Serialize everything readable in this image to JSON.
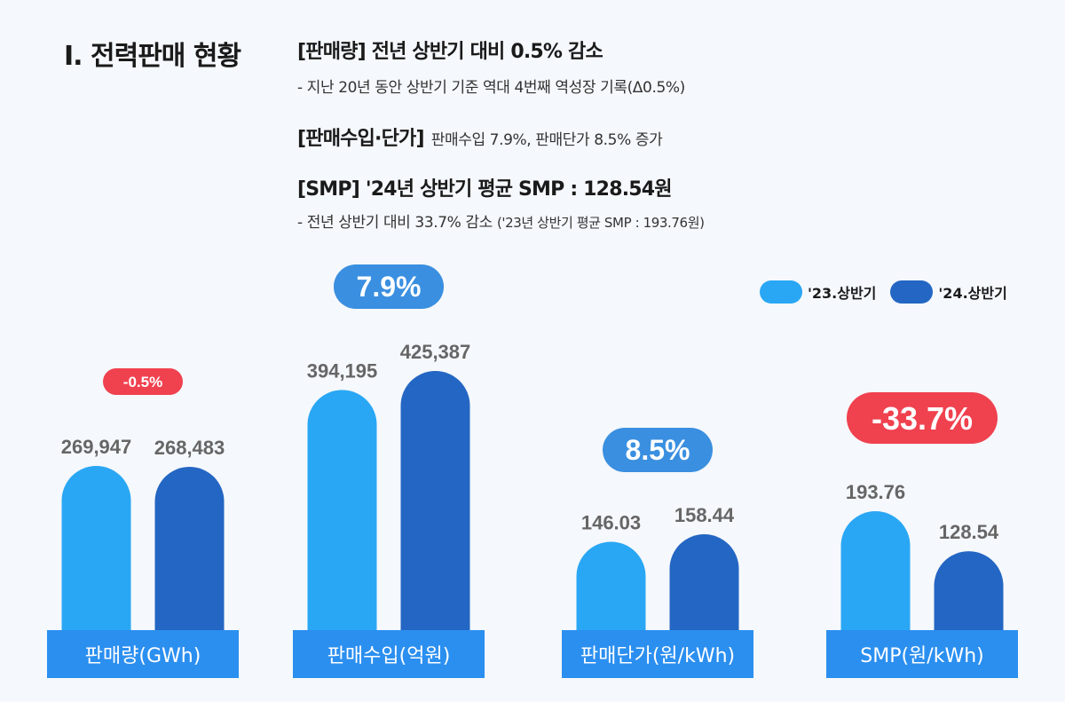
{
  "section_title": "I. 전력판매 현황",
  "summary": {
    "sales_head": "[판매량] 전년 상반기 대비 0.5% 감소",
    "sales_sub": "- 지난 20년 동안 상반기 기준 역대 4번째 역성장 기록(Δ0.5%)",
    "revenue_head": "[판매수입·단가]",
    "revenue_detail": "판매수입 7.9%, 판매단가 8.5% 증가",
    "smp_head": "[SMP]  '24년 상반기 평균 SMP : 128.54원",
    "smp_sub": "- 전년 상반기 대비 33.7% 감소",
    "smp_sub_note": "('23년 상반기 평균 SMP : 193.76원)"
  },
  "colors": {
    "series_2023": "#2aa7f4",
    "series_2024": "#2466c3",
    "increase_badge": "#3a8fe0",
    "decrease_badge": "#f0414f",
    "label_bar": "#2b8ff0",
    "value_text": "#666666"
  },
  "chart_data": {
    "type": "bar",
    "legend": [
      "'23.상반기",
      "'24.상반기"
    ],
    "groups": [
      {
        "category": "판매량(GWh)",
        "values": [
          269947,
          268483
        ],
        "labels": [
          "269,947",
          "268,483"
        ],
        "change": "-0.5%",
        "change_sign": "negative"
      },
      {
        "category": "판매수입(억원)",
        "values": [
          394195,
          425387
        ],
        "labels": [
          "394,195",
          "425,387"
        ],
        "change": "7.9%",
        "change_sign": "positive"
      },
      {
        "category": "판매단가(원/kWh)",
        "values": [
          146.03,
          158.44
        ],
        "labels": [
          "146.03",
          "158.44"
        ],
        "change": "8.5%",
        "change_sign": "positive"
      },
      {
        "category": "SMP(원/kWh)",
        "values": [
          193.76,
          128.54
        ],
        "labels": [
          "193.76",
          "128.54"
        ],
        "change": "-33.7%",
        "change_sign": "negative"
      }
    ]
  }
}
